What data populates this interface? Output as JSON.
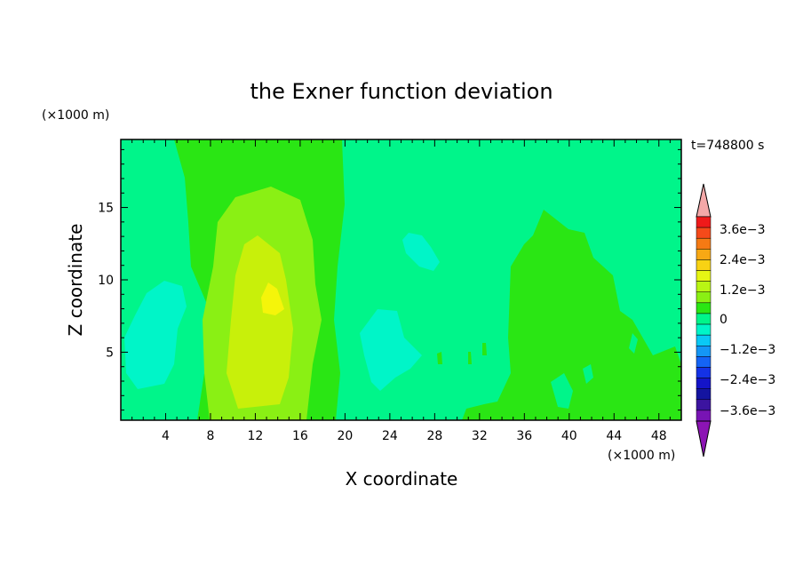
{
  "chart_data": {
    "type": "heatmap",
    "title": "the Exner function deviation",
    "xlabel": "X coordinate",
    "ylabel": "Z coordinate",
    "x_unit": "(×1000 m)",
    "y_unit": "(×1000 m)",
    "time_label": "t=748800 s",
    "xlim": [
      0,
      50
    ],
    "ylim": [
      0.3,
      19.7
    ],
    "x_ticks": [
      "4",
      "8",
      "12",
      "16",
      "20",
      "24",
      "28",
      "32",
      "36",
      "40",
      "44",
      "48"
    ],
    "y_ticks": [
      "5",
      "10",
      "15"
    ],
    "colorbar": {
      "labels": [
        "3.6e−3",
        "2.4e−3",
        "1.2e−3",
        "0",
        "−1.2e−3",
        "−2.4e−3",
        "−3.6e−3"
      ],
      "colors_top_to_bottom": [
        "#ef1a1a",
        "#f54a1a",
        "#f57a14",
        "#f8a814",
        "#f8d214",
        "#e6f514",
        "#b9f514",
        "#8af014",
        "#2ae614",
        "#00f58a",
        "#00f5c8",
        "#0ac8f5",
        "#1496f5",
        "#1464f5",
        "#1432e6",
        "#1414c8",
        "#1414a0",
        "#3c14a0",
        "#7814b4"
      ],
      "over_color": "#f4a8a8",
      "under_color": "#8c14b4"
    },
    "background_level_color": "#00f58a",
    "regions": [
      {
        "level": "0 to 0.6e-3",
        "color": "#2ae614",
        "x": [
          6,
          20
        ],
        "z": [
          0.3,
          19.7
        ]
      },
      {
        "level": "0.6e-3 to 1.2e-3",
        "color": "#8af014",
        "x": [
          8.5,
          18.5
        ],
        "z": [
          0.5,
          16.5
        ]
      },
      {
        "level": "1.2e-3 to 1.8e-3",
        "color": "#c8f00a",
        "x": [
          11,
          16
        ],
        "z": [
          2.5,
          13
        ]
      },
      {
        "level": "1.8e-3 to 2.4e-3",
        "color": "#f5f50a",
        "x": [
          12.5,
          14
        ],
        "z": [
          7.5,
          9
        ]
      },
      {
        "level": "0 to 0.6e-3",
        "color": "#2ae614",
        "x": [
          34,
          50
        ],
        "z": [
          0.3,
          15
        ]
      },
      {
        "level": "-0.6e-3 to 0",
        "color": "#00f5c8",
        "x": [
          0,
          6
        ],
        "z": [
          2.5,
          10
        ]
      },
      {
        "level": "-0.6e-3 to 0",
        "color": "#00f5c8",
        "x": [
          21,
          27
        ],
        "z": [
          2,
          8
        ]
      },
      {
        "level": "-0.6e-3 to 0",
        "color": "#00f5c8",
        "x": [
          25,
          28
        ],
        "z": [
          10.5,
          13.5
        ]
      }
    ]
  }
}
